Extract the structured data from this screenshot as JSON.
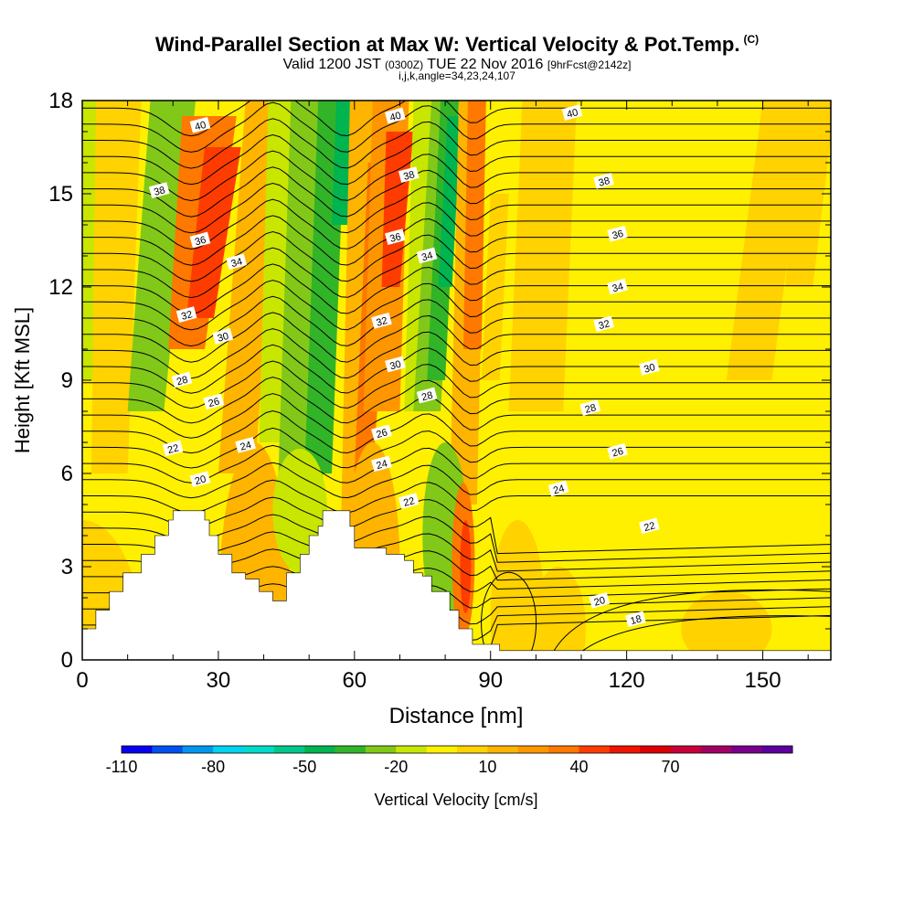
{
  "chart_data": {
    "type": "cross-section contour",
    "title": "Wind-Parallel Section at Max W: Vertical Velocity & Pot.Temp.",
    "title_mark": "(C)",
    "subtitle": {
      "valid": "Valid 1200 JST",
      "utc": "(0300Z)",
      "date": "TUE 22 Nov 2016",
      "forecast": "[9hrFcst@2142z]"
    },
    "indices": "i,j,k,angle=34,23,24,107",
    "xlabel": "Distance [nm]",
    "ylabel": "Height [Kft MSL]",
    "xlim": [
      0,
      165
    ],
    "ylim": [
      0,
      18
    ],
    "xticks": [
      0,
      30,
      60,
      90,
      120,
      150
    ],
    "yticks": [
      0,
      3,
      6,
      9,
      12,
      15,
      18
    ],
    "colorbar": {
      "label": "Vertical Velocity [cm/s]",
      "tick_labels": [
        "-110",
        "-80",
        "-50",
        "-20",
        "10",
        "40",
        "70"
      ],
      "colors": [
        "#0a00f0",
        "#0050f0",
        "#0096f0",
        "#00d2f0",
        "#00dcc8",
        "#00c88c",
        "#00b450",
        "#32b428",
        "#82c818",
        "#c8e600",
        "#fff000",
        "#ffd200",
        "#ffb400",
        "#ff9600",
        "#ff7800",
        "#ff3c00",
        "#f01400",
        "#dc0000",
        "#c8003c",
        "#a00064",
        "#78008c",
        "#5a00a0"
      ]
    },
    "theta_labels": [
      {
        "value": "40",
        "x": 26,
        "y": 17.2
      },
      {
        "value": "40",
        "x": 69,
        "y": 17.5
      },
      {
        "value": "40",
        "x": 108,
        "y": 17.6
      },
      {
        "value": "38",
        "x": 17,
        "y": 15.1
      },
      {
        "value": "38",
        "x": 72,
        "y": 15.6
      },
      {
        "value": "38",
        "x": 115,
        "y": 15.4
      },
      {
        "value": "36",
        "x": 26,
        "y": 13.5
      },
      {
        "value": "36",
        "x": 69,
        "y": 13.6
      },
      {
        "value": "36",
        "x": 118,
        "y": 13.7
      },
      {
        "value": "34",
        "x": 34,
        "y": 12.8
      },
      {
        "value": "34",
        "x": 76,
        "y": 13.0
      },
      {
        "value": "34",
        "x": 118,
        "y": 12.0
      },
      {
        "value": "32",
        "x": 23,
        "y": 11.1
      },
      {
        "value": "32",
        "x": 66,
        "y": 10.9
      },
      {
        "value": "32",
        "x": 115,
        "y": 10.8
      },
      {
        "value": "30",
        "x": 31,
        "y": 10.4
      },
      {
        "value": "30",
        "x": 69,
        "y": 9.5
      },
      {
        "value": "30",
        "x": 125,
        "y": 9.4
      },
      {
        "value": "28",
        "x": 22,
        "y": 9.0
      },
      {
        "value": "28",
        "x": 76,
        "y": 8.5
      },
      {
        "value": "28",
        "x": 112,
        "y": 8.1
      },
      {
        "value": "26",
        "x": 29,
        "y": 8.3
      },
      {
        "value": "26",
        "x": 66,
        "y": 7.3
      },
      {
        "value": "26",
        "x": 118,
        "y": 6.7
      },
      {
        "value": "24",
        "x": 36,
        "y": 6.9
      },
      {
        "value": "24",
        "x": 66,
        "y": 6.3
      },
      {
        "value": "24",
        "x": 105,
        "y": 5.5
      },
      {
        "value": "22",
        "x": 20,
        "y": 6.8
      },
      {
        "value": "22",
        "x": 72,
        "y": 5.1
      },
      {
        "value": "22",
        "x": 125,
        "y": 4.3
      },
      {
        "value": "20",
        "x": 26,
        "y": 5.8
      },
      {
        "value": "20",
        "x": 114,
        "y": 1.9
      },
      {
        "value": "18",
        "x": 122,
        "y": 1.3
      }
    ]
  }
}
